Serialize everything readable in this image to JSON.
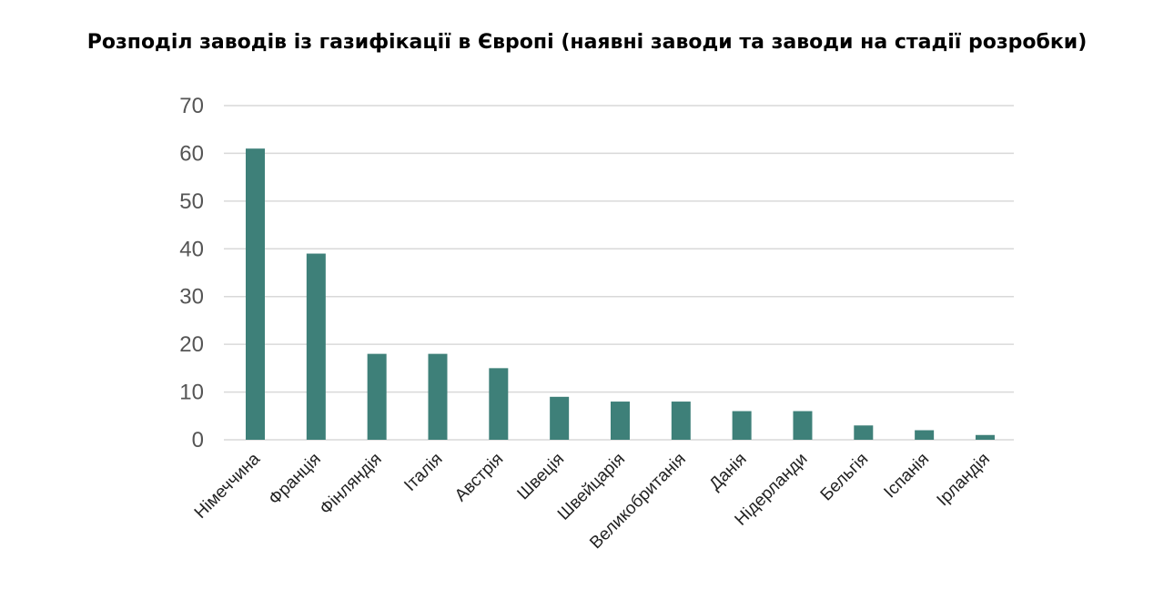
{
  "chart_data": {
    "type": "bar",
    "title": "Розподіл заводів із газифікації в Європі (наявні заводи та заводи на стадії розробки)",
    "xlabel": "",
    "ylabel": "",
    "ylim": [
      0,
      70
    ],
    "yticks": [
      0,
      10,
      20,
      30,
      40,
      50,
      60,
      70
    ],
    "grid": true,
    "categories": [
      "Німеччина",
      "Франція",
      "Фінляндія",
      "Італія",
      "Австрія",
      "Швеція",
      "Швейцарія",
      "Великобританія",
      "Данія",
      "Нідерланди",
      "Бельгія",
      "Іспанія",
      "Ірландія"
    ],
    "values": [
      61,
      39,
      18,
      18,
      15,
      9,
      8,
      8,
      6,
      6,
      3,
      2,
      1
    ],
    "bar_color": "#3e8079",
    "grid_color": "#d9d9d9"
  }
}
